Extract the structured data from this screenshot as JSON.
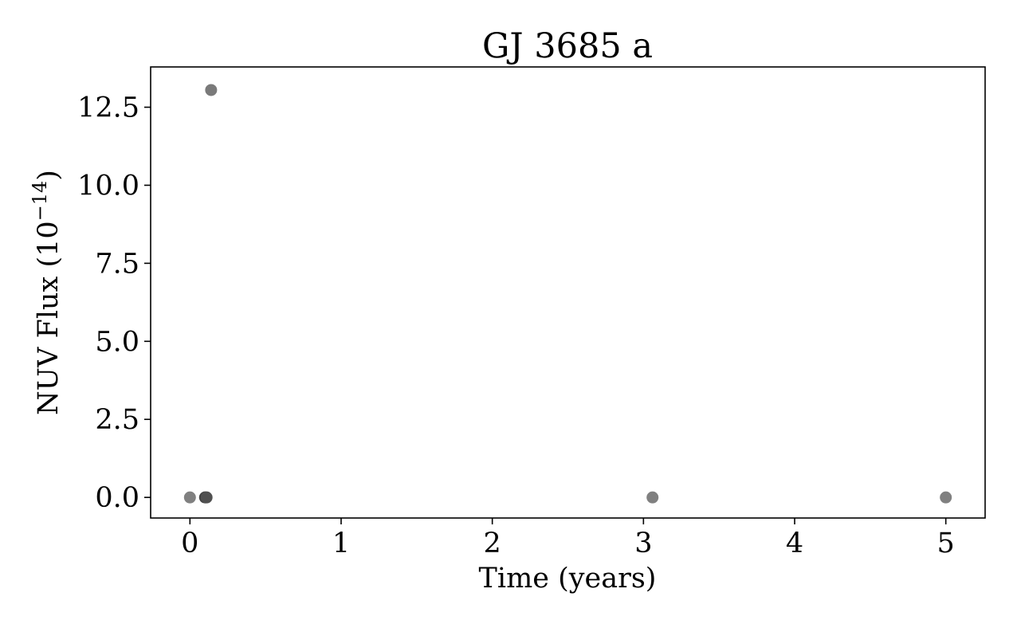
{
  "chart_data": {
    "type": "scatter",
    "title": "GJ 3685 a",
    "xlabel": "Time (years)",
    "ylabel_main": "NUV Flux (10",
    "ylabel_exp": "−14",
    "ylabel_close": ")",
    "xlim": [
      -0.26,
      5.26
    ],
    "ylim": [
      -0.66,
      13.79
    ],
    "xticks": [
      0,
      1,
      2,
      3,
      4,
      5
    ],
    "xtick_labels": [
      "0",
      "1",
      "2",
      "3",
      "4",
      "5"
    ],
    "yticks": [
      0.0,
      2.5,
      5.0,
      7.5,
      10.0,
      12.5
    ],
    "ytick_labels": [
      "0.0",
      "2.5",
      "5.0",
      "7.5",
      "10.0",
      "12.5"
    ],
    "grid": false,
    "points": [
      {
        "x": 0.0,
        "y": 0.0,
        "color": "#808080"
      },
      {
        "x": 0.1,
        "y": 0.0,
        "color": "#404040"
      },
      {
        "x": 0.11,
        "y": 0.0,
        "color": "#505050"
      },
      {
        "x": 0.14,
        "y": 13.05,
        "color": "#7a7a7a"
      },
      {
        "x": 3.06,
        "y": 0.0,
        "color": "#808080"
      },
      {
        "x": 5.0,
        "y": 0.0,
        "color": "#808080"
      }
    ]
  }
}
